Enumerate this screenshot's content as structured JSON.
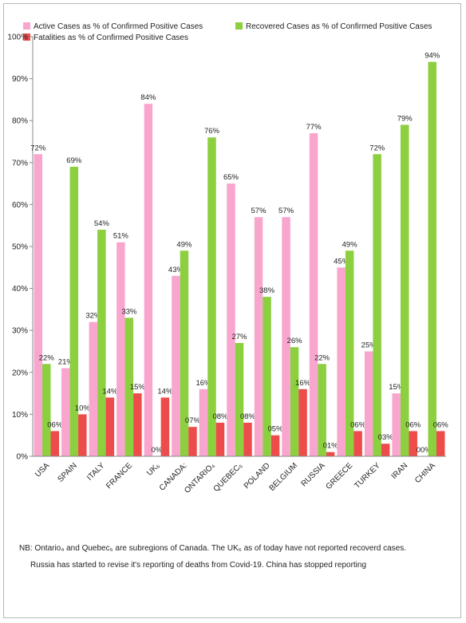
{
  "chart_data": {
    "type": "bar",
    "title": "",
    "xlabel": "",
    "ylabel": "",
    "ylim": [
      0,
      100
    ],
    "yticks": [
      "0%",
      "10%",
      "20%",
      "30%",
      "40%",
      "50%",
      "60%",
      "70%",
      "80%",
      "90%",
      "100%"
    ],
    "grid": false,
    "legend_position": "top",
    "categories": [
      "USA",
      "SPAIN",
      "ITALY",
      "FRANCE",
      "UK₆",
      "CANADA:",
      "ONTARIO₄",
      "QUEBEC₅",
      "POLAND",
      "BELGIUM",
      "RUSSIA",
      "GREECE",
      "TURKEY",
      "IRAN",
      "CHINA"
    ],
    "series": [
      {
        "name": "Active Cases as % of Confirmed Positive Cases",
        "color": "#f9a6cf",
        "values": [
          72,
          21,
          32,
          51,
          84,
          43,
          16,
          65,
          57,
          57,
          77,
          45,
          25,
          15,
          0
        ],
        "labels": [
          "72%",
          "21%",
          "32%",
          "51%",
          "84%",
          "43%",
          "16%",
          "65%",
          "57%",
          "57%",
          "77%",
          "45%",
          "25%",
          "15%",
          "00%"
        ]
      },
      {
        "name": "Recovered Cases as % of Confirmed Positive Cases",
        "color": "#8ccf3f",
        "values": [
          22,
          69,
          54,
          33,
          0,
          49,
          76,
          27,
          38,
          26,
          22,
          49,
          72,
          79,
          94
        ],
        "labels": [
          "22%",
          "69%",
          "54%",
          "33%",
          "0%",
          "49%",
          "76%",
          "27%",
          "38%",
          "26%",
          "22%",
          "49%",
          "72%",
          "79%",
          "94%"
        ]
      },
      {
        "name": "Fatalities as % of Confirmed Positive Cases",
        "color": "#ee4b4b",
        "values": [
          6,
          10,
          14,
          15,
          14,
          7,
          8,
          8,
          5,
          16,
          1,
          6,
          3,
          6,
          6
        ],
        "labels": [
          "06%",
          "10%",
          "14%",
          "15%",
          "14%",
          "07%",
          "08%",
          "08%",
          "05%",
          "16%",
          "01%",
          "06%",
          "03%",
          "06%",
          "06%"
        ]
      }
    ]
  },
  "notes": {
    "line1": "NB: Ontario₄ and Quebec₅ are subregions of Canada. The UK₆ as of today have not reported recoverd cases.",
    "line2": "Russia has started to revise it's reporting of deaths from Covid-19.  China has stopped reporting"
  }
}
